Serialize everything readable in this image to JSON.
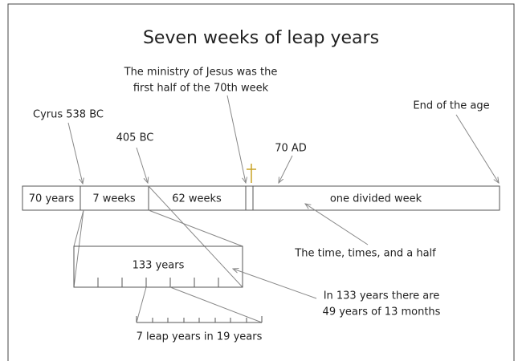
{
  "title": "Seven weeks of leap years",
  "segments": [
    "70 years",
    "7 weeks",
    "62 weeks",
    "one divided week"
  ],
  "annotations": {
    "ministry": [
      "The ministry of Jesus was the",
      "first half of the 70th week"
    ],
    "cyrus": "Cyrus 538 BC",
    "bc405": "405 BC",
    "ad70": "70 AD",
    "end": "End of the age",
    "time": "The time, times, and a half",
    "box": "133 years",
    "leap_months": [
      "In 133 years there are",
      "49 years of 13 months"
    ],
    "leap_cycle": "7 leap years in 19 years"
  }
}
